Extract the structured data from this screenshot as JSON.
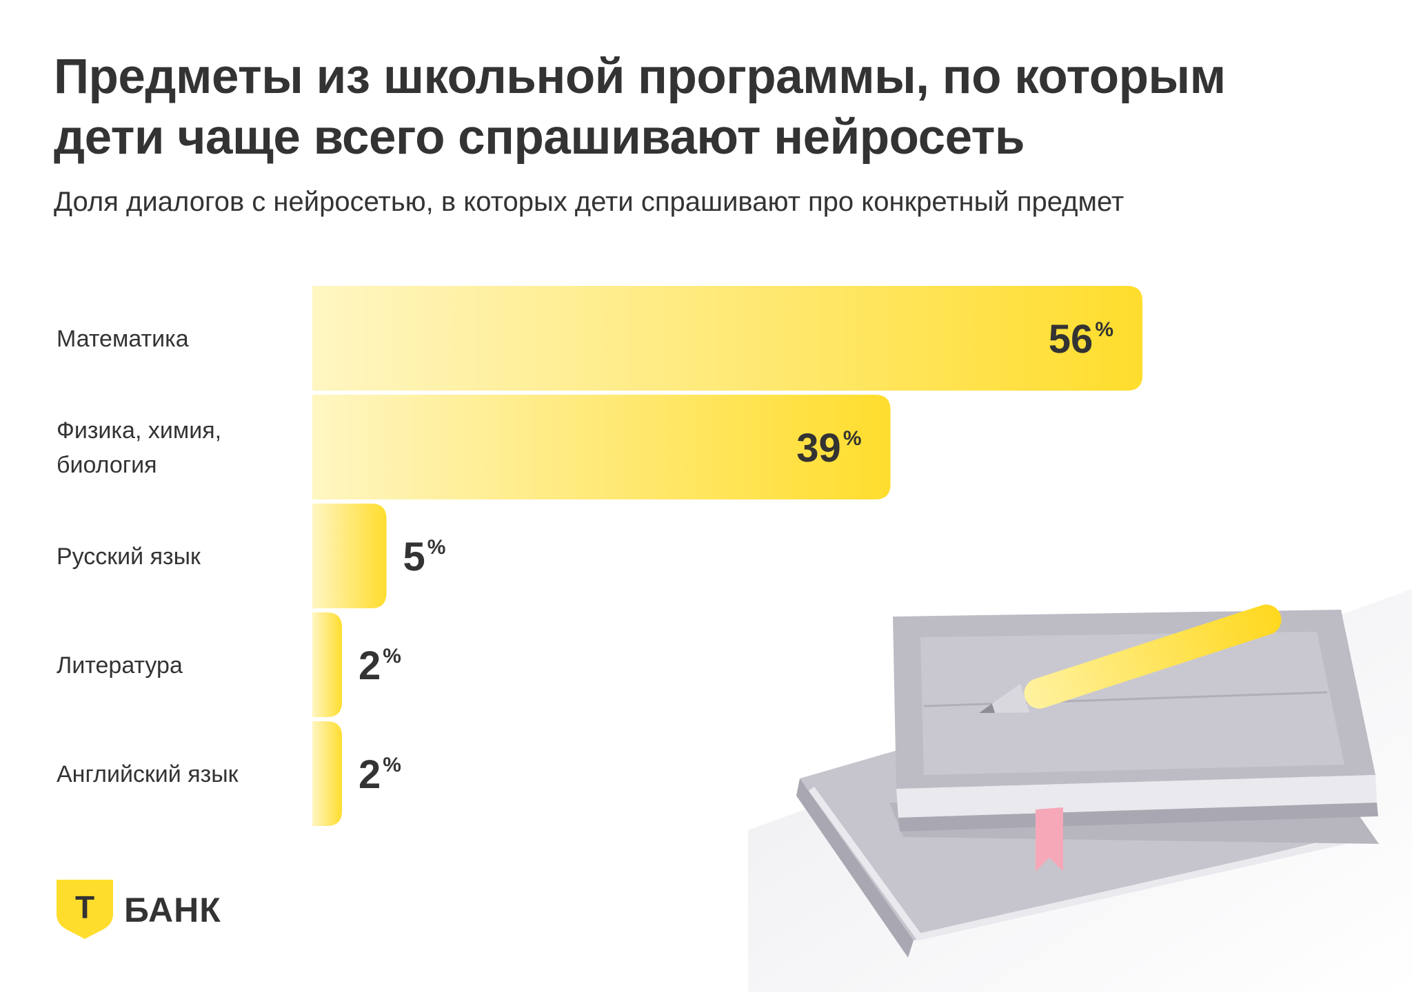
{
  "title_lines": [
    "Предметы из школьной программы, по которым",
    "дети чаще всего спрашивают нейросеть"
  ],
  "subtitle": "Доля диалогов с нейросетью, в которых дети спрашивают про конкретный предмет",
  "colors": {
    "bar_start": "#fff6c2",
    "bar_end": "#ffdd2d",
    "text": "#333333",
    "logo_shield": "#ffdd2d"
  },
  "chart_data": {
    "type": "bar",
    "orientation": "horizontal",
    "categories": [
      [
        "Математика"
      ],
      [
        "Физика, химия,",
        "биология"
      ],
      [
        "Русский язык"
      ],
      [
        "Литература"
      ],
      [
        "Английский язык"
      ]
    ],
    "values": [
      56,
      39,
      5,
      2,
      2
    ],
    "value_labels": [
      "56",
      "39",
      "5",
      "2",
      "2"
    ],
    "unit": "%",
    "xlim": [
      0,
      56
    ],
    "grid": false,
    "legend": "none"
  },
  "logo": {
    "letter": "Т",
    "text": "БАНК"
  }
}
